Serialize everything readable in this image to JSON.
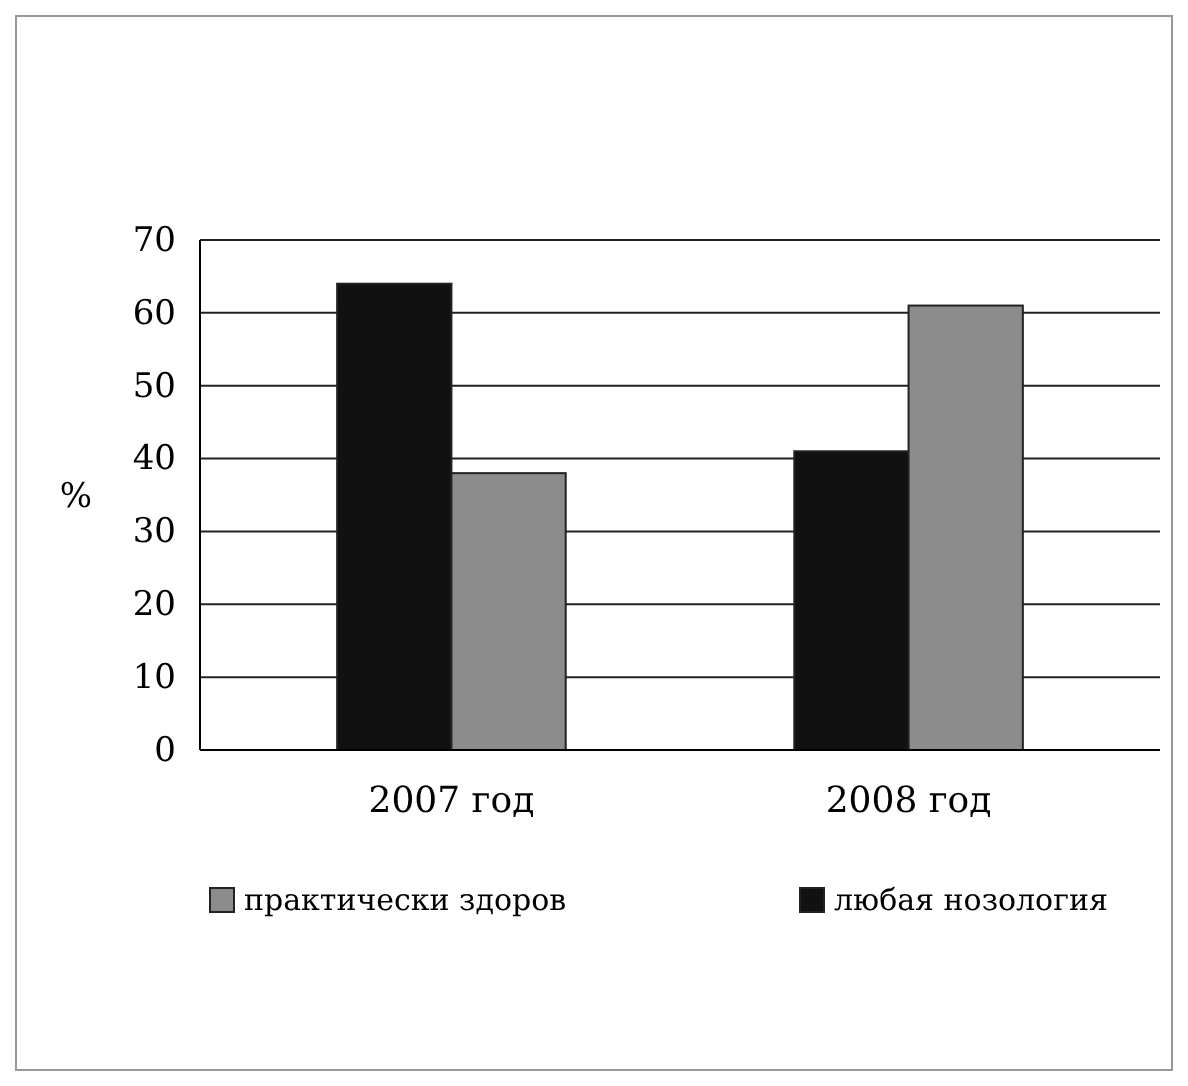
{
  "chart_data": {
    "type": "bar",
    "ylabel": "%",
    "categories": [
      "2007 год",
      "2008 год"
    ],
    "series": [
      {
        "name": "любая нозология",
        "color": "#111111",
        "values": [
          64,
          41
        ]
      },
      {
        "name": "практически здоров",
        "color": "#8c8c8c",
        "values": [
          38,
          61
        ]
      }
    ],
    "ylim": [
      0,
      70
    ],
    "yticks": [
      0,
      10,
      20,
      30,
      40,
      50,
      60,
      70
    ],
    "grid": "y",
    "legend": "bottom"
  }
}
